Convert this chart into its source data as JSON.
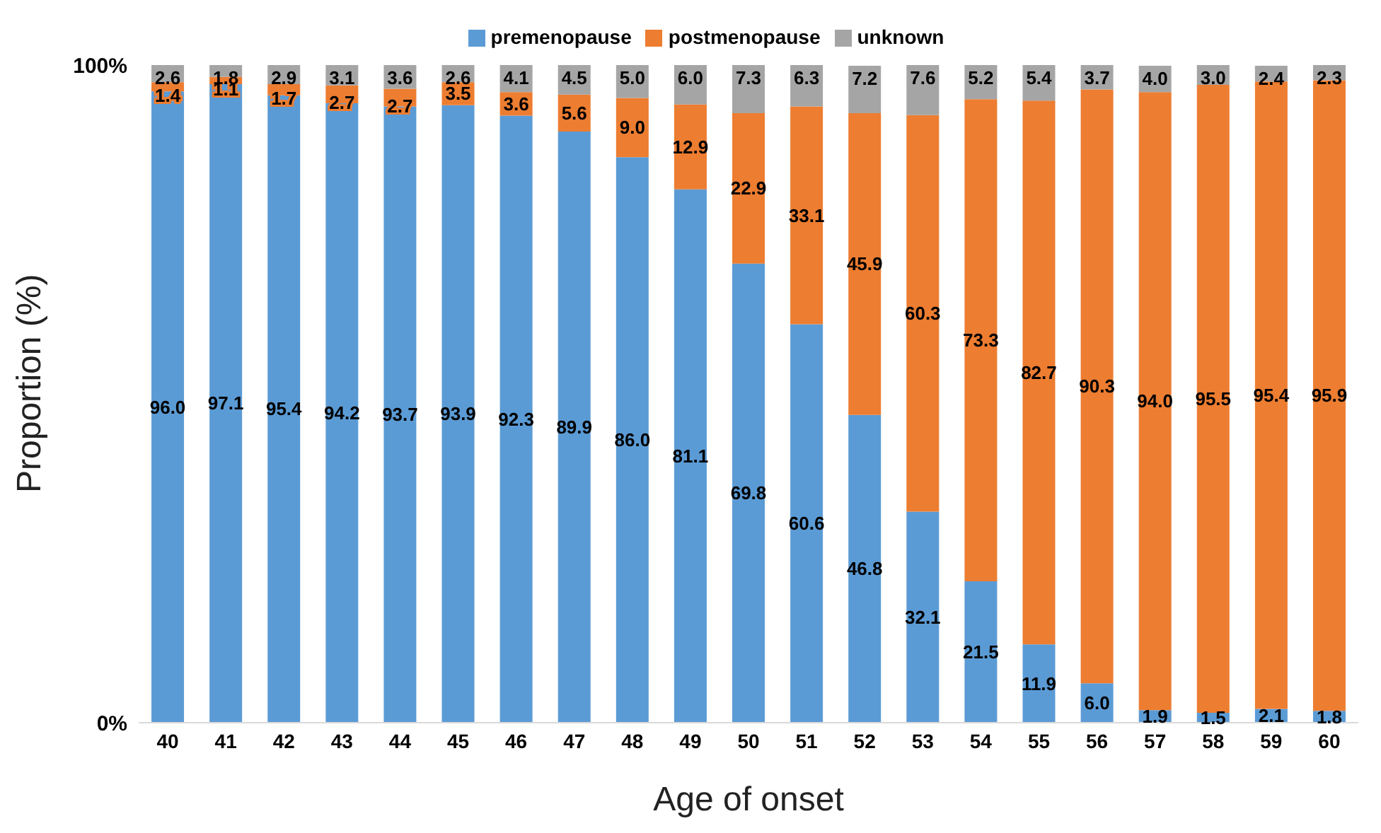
{
  "chart_data": {
    "type": "bar",
    "stacked": true,
    "xlabel": "Age of onset",
    "ylabel": "Proportion (%)",
    "categories": [
      "40",
      "41",
      "42",
      "43",
      "44",
      "45",
      "46",
      "47",
      "48",
      "49",
      "50",
      "51",
      "52",
      "53",
      "54",
      "55",
      "56",
      "57",
      "58",
      "59",
      "60"
    ],
    "series": [
      {
        "name": "premenopause",
        "color": "#5b9bd5",
        "values": [
          96.0,
          97.1,
          95.4,
          94.2,
          93.7,
          93.9,
          92.3,
          89.9,
          86.0,
          81.1,
          69.8,
          60.6,
          46.8,
          32.1,
          21.5,
          11.9,
          6.0,
          1.9,
          1.5,
          2.1,
          1.8
        ],
        "value_labels": [
          "96.0",
          "97.1",
          "95.4",
          "94.2",
          "93.7",
          "93.9",
          "92.3",
          "89.9",
          "86.0",
          "81.1",
          "69.8",
          "60.6",
          "46.8",
          "32.1",
          "21.5",
          "11.9",
          "6.0",
          "1.9",
          "1.5",
          "2.1",
          "1.8"
        ]
      },
      {
        "name": "postmenopause",
        "color": "#ed7d31",
        "values": [
          1.4,
          1.1,
          1.7,
          2.7,
          2.7,
          3.5,
          3.6,
          5.6,
          9.0,
          12.9,
          22.9,
          33.1,
          45.9,
          60.3,
          73.3,
          82.7,
          90.3,
          94.0,
          95.5,
          95.4,
          95.9
        ],
        "value_labels": [
          "1.4",
          "1.1",
          "1.7",
          "2.7",
          "2.7",
          "3.5",
          "3.6",
          "5.6",
          "9.0",
          "12.9",
          "22.9",
          "33.1",
          "45.9",
          "60.3",
          "73.3",
          "82.7",
          "90.3",
          "94.0",
          "95.5",
          "95.4",
          "95.9"
        ]
      },
      {
        "name": "unknown",
        "color": "#a5a5a5",
        "values": [
          2.6,
          1.8,
          2.9,
          3.1,
          3.6,
          2.6,
          4.1,
          4.5,
          5.0,
          6.0,
          7.3,
          6.3,
          7.2,
          7.6,
          5.2,
          5.4,
          3.7,
          4.0,
          3.0,
          2.4,
          2.3
        ],
        "value_labels": [
          "2.6",
          "1.8",
          "2.9",
          "3.1",
          "3.6",
          "2.6",
          "4.1",
          "4.5",
          "5.0",
          "6.0",
          "7.3",
          "6.3",
          "7.2",
          "7.6",
          "5.2",
          "5.4",
          "3.7",
          "4.0",
          "3.0",
          "2.4",
          "2.3"
        ]
      }
    ],
    "ylim": [
      0,
      100
    ],
    "yticks": [
      {
        "value": 0,
        "label": "0%"
      },
      {
        "value": 100,
        "label": "100%"
      }
    ],
    "grid": false,
    "legend": "top"
  }
}
